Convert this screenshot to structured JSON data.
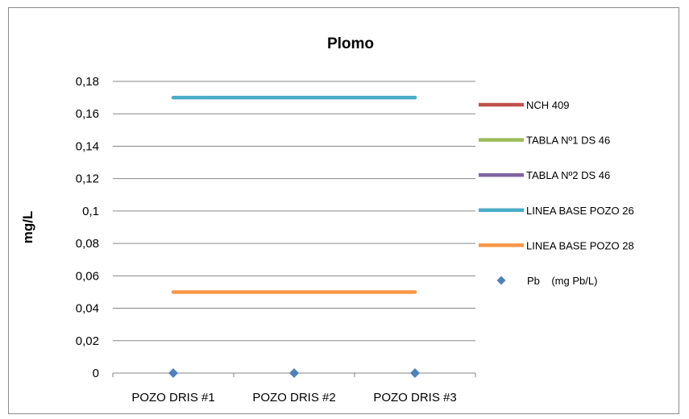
{
  "chart_data": {
    "type": "line",
    "title": "Plomo",
    "xlabel": "",
    "ylabel": "mg/L",
    "categories": [
      "POZO DRIS #1",
      "POZO DRIS #2",
      "POZO DRIS #3"
    ],
    "ylim": [
      0,
      0.18
    ],
    "ytick_step": 0.02,
    "yticks": [
      "0",
      "0,02",
      "0,04",
      "0,06",
      "0,08",
      "0,1",
      "0,12",
      "0,14",
      "0,16",
      "0,18"
    ],
    "grid": true,
    "legend_position": "right",
    "series": [
      {
        "name": "NCH 409",
        "kind": "line",
        "color": "#c0504d",
        "values": [
          null,
          null,
          null
        ]
      },
      {
        "name": "TABLA Nº1 DS 46",
        "kind": "line",
        "color": "#9bbb59",
        "values": [
          null,
          null,
          null
        ]
      },
      {
        "name": "TABLA Nº2 DS 46",
        "kind": "line",
        "color": "#8064a2",
        "values": [
          null,
          null,
          null
        ]
      },
      {
        "name": "LINEA BASE POZO 26",
        "kind": "line",
        "color": "#4bacc6",
        "values": [
          0.17,
          0.17,
          0.17
        ]
      },
      {
        "name": "LINEA BASE POZO 28",
        "kind": "line",
        "color": "#f79646",
        "values": [
          0.05,
          0.05,
          0.05
        ]
      },
      {
        "name": "Pb    (mg Pb/L)",
        "kind": "marker",
        "color": "#4f81bd",
        "values": [
          0,
          0,
          0
        ]
      }
    ]
  }
}
